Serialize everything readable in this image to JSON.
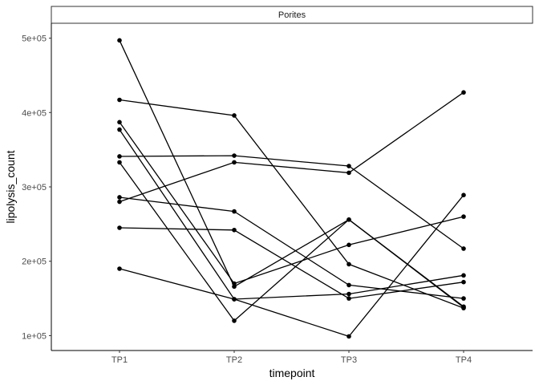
{
  "chart_data": {
    "type": "line",
    "facet": "Porites",
    "xlabel": "timepoint",
    "ylabel": "lipolysis_count",
    "categories": [
      "TP1",
      "TP2",
      "TP3",
      "TP4"
    ],
    "y_ticks": [
      100000,
      200000,
      300000,
      400000,
      500000
    ],
    "y_tick_labels": [
      "1e+05",
      "2e+05",
      "3e+05",
      "4e+05",
      "5e+05"
    ],
    "ylim": [
      80000,
      520000
    ],
    "grid": false,
    "legend": "none",
    "line_color": "#000000",
    "series": [
      {
        "values": [
          497000,
          166000,
          256000,
          138000
        ]
      },
      {
        "values": [
          417000,
          396000,
          196000,
          137000
        ]
      },
      {
        "values": [
          387000,
          170000,
          222000,
          260000
        ]
      },
      {
        "values": [
          377000,
          149000,
          156000,
          181000
        ]
      },
      {
        "values": [
          341000,
          342000,
          328000,
          217000
        ]
      },
      {
        "values": [
          333000,
          120000,
          256000,
          139000
        ]
      },
      {
        "values": [
          286000,
          267000,
          168000,
          150000
        ]
      },
      {
        "values": [
          280000,
          333000,
          319000,
          427000
        ]
      },
      {
        "values": [
          245000,
          242000,
          150000,
          172000
        ]
      },
      {
        "values": [
          190000,
          149000,
          99000,
          289000
        ]
      }
    ]
  }
}
